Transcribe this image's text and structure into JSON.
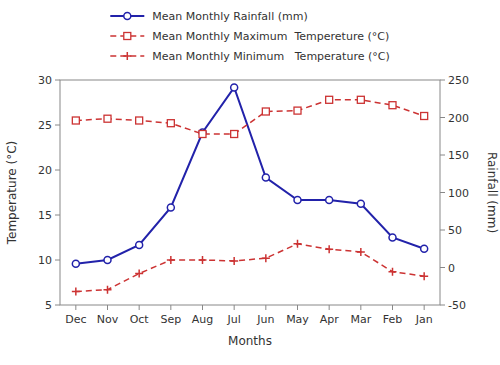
{
  "chart_data": {
    "type": "line",
    "categories": [
      "Dec",
      "Nov",
      "Oct",
      "Sep",
      "Aug",
      "Jul",
      "Jun",
      "May",
      "Apr",
      "Mar",
      "Feb",
      "Jan"
    ],
    "series": [
      {
        "name": "Mean Monthly Rainfall (mm)",
        "color": "#2222aa",
        "axis": "y2",
        "marker": "circle",
        "line_style": "solid",
        "values": [
          5,
          10,
          30,
          80,
          180,
          240,
          120,
          90,
          90,
          85,
          40,
          25
        ]
      },
      {
        "name": "Mean Monthly Maximum  Tempereture (°C)",
        "color": "#cc3333",
        "marker": "square",
        "line_style": "dashed",
        "values": [
          25.5,
          25.7,
          25.5,
          25.2,
          24.0,
          24.0,
          26.5,
          26.6,
          27.8,
          27.8,
          27.2,
          26.0
        ]
      },
      {
        "name": "Mean Monthly Minimum   Temperature (°C)",
        "color": "#cc3333",
        "marker": "plus",
        "line_style": "dashed",
        "values": [
          6.5,
          6.7,
          8.5,
          10.0,
          10.0,
          9.9,
          10.2,
          11.8,
          11.2,
          10.9,
          8.7,
          8.2
        ]
      }
    ],
    "xlabel": "Months",
    "ylabel": "Temperature (°C)",
    "y2label": "Rainfall (mm)",
    "ylim": [
      5,
      30
    ],
    "yticks": [
      5,
      10,
      15,
      20,
      25,
      30
    ],
    "y2lim": [
      -50,
      250
    ],
    "y2ticks": [
      -50,
      0,
      50,
      100,
      150,
      200,
      250
    ],
    "grid": false,
    "legend": "top"
  }
}
